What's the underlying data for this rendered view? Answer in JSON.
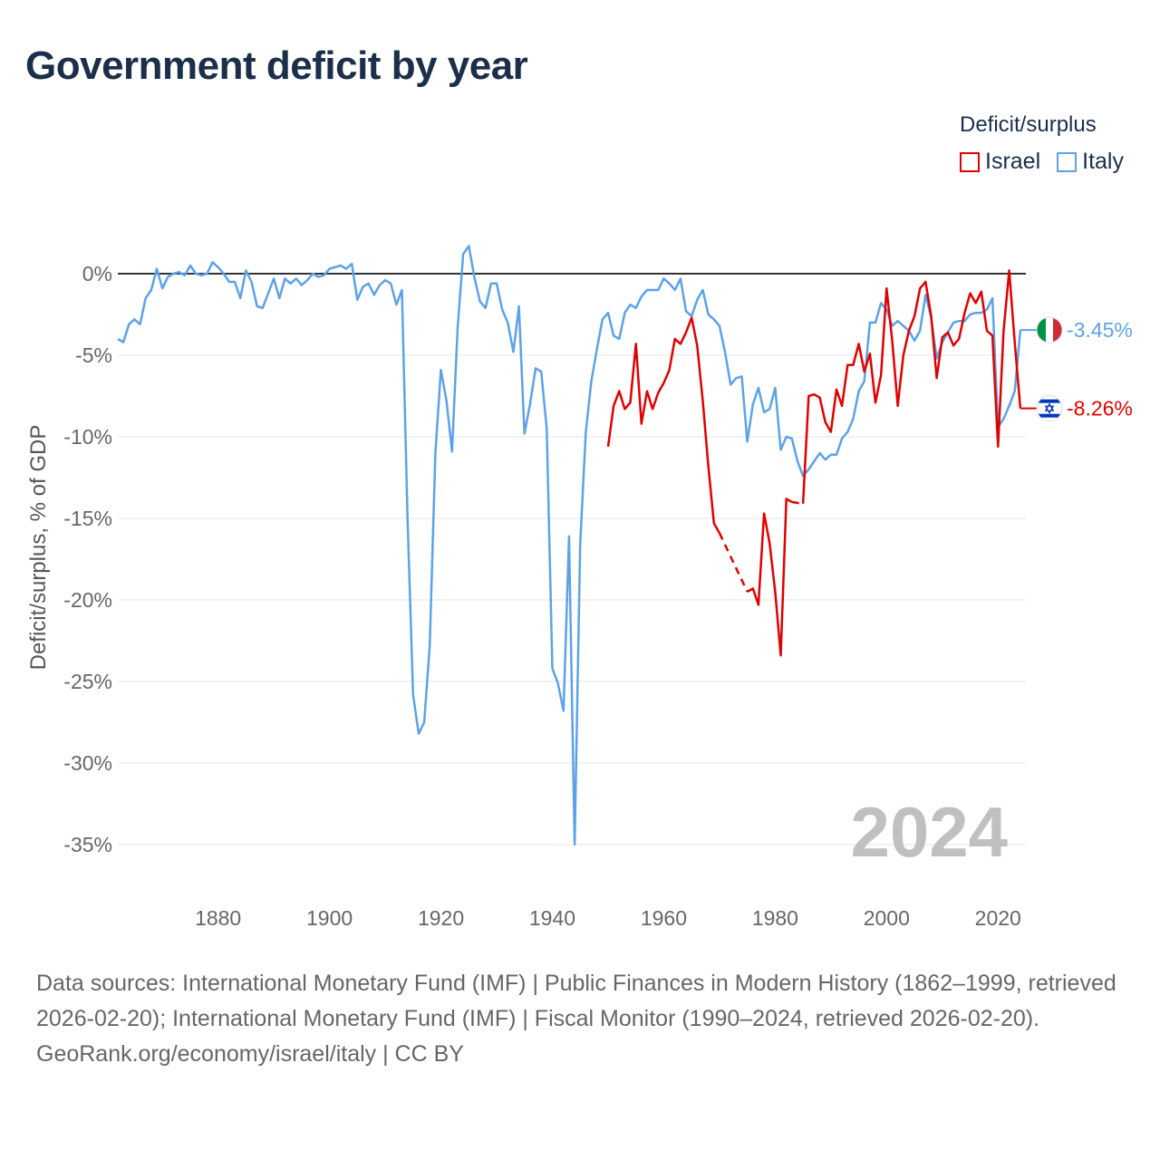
{
  "title": "Government deficit by year",
  "legend": {
    "title": "Deficit/surplus",
    "items": [
      {
        "name": "Israel",
        "color": "#e00000"
      },
      {
        "name": "Italy",
        "color": "#5da2e6"
      }
    ]
  },
  "watermark_year": "2024",
  "sources": "Data sources: International Monetary Fund (IMF) | Public Finances in Modern History (1862–1999, retrieved 2026-02-20); International Monetary Fund (IMF) | Fiscal Monitor (1990–2024, retrieved 2026-02-20).",
  "attribution": "GeoRank.org/economy/israel/italy | CC BY",
  "chart_data": {
    "type": "line",
    "title": "Government deficit by year",
    "xlabel": "",
    "ylabel": "Deficit/surplus, % of GDP",
    "xlim": [
      1862,
      2025
    ],
    "ylim": [
      -35,
      0
    ],
    "x_ticks": [
      1880,
      1900,
      1920,
      1940,
      1960,
      1980,
      2000,
      2020
    ],
    "y_ticks": [
      0,
      -5,
      -10,
      -15,
      -20,
      -25,
      -30,
      -35
    ],
    "y_tick_labels": [
      "0%",
      "-5%",
      "-10%",
      "-15%",
      "-20%",
      "-25%",
      "-30%",
      "-35%"
    ],
    "legend_position": "top-right",
    "series": [
      {
        "name": "Italy",
        "color": "#5da2e6",
        "end_label": "-3.45%",
        "flag": "italy",
        "points": [
          [
            1862,
            -4.0
          ],
          [
            1863,
            -4.2
          ],
          [
            1864,
            -3.1
          ],
          [
            1865,
            -2.8
          ],
          [
            1866,
            -3.1
          ],
          [
            1867,
            -1.5
          ],
          [
            1868,
            -1.0
          ],
          [
            1869,
            0.3
          ],
          [
            1870,
            -0.9
          ],
          [
            1871,
            -0.2
          ],
          [
            1872,
            0.0
          ],
          [
            1873,
            0.1
          ],
          [
            1874,
            -0.1
          ],
          [
            1875,
            0.5
          ],
          [
            1876,
            0.0
          ],
          [
            1877,
            -0.1
          ],
          [
            1878,
            0.0
          ],
          [
            1879,
            0.7
          ],
          [
            1880,
            0.4
          ],
          [
            1881,
            0.0
          ],
          [
            1882,
            -0.5
          ],
          [
            1883,
            -0.5
          ],
          [
            1884,
            -1.5
          ],
          [
            1885,
            0.2
          ],
          [
            1886,
            -0.5
          ],
          [
            1887,
            -2.0
          ],
          [
            1888,
            -2.1
          ],
          [
            1889,
            -1.2
          ],
          [
            1890,
            -0.3
          ],
          [
            1891,
            -1.5
          ],
          [
            1892,
            -0.3
          ],
          [
            1893,
            -0.6
          ],
          [
            1894,
            -0.3
          ],
          [
            1895,
            -0.7
          ],
          [
            1896,
            -0.4
          ],
          [
            1897,
            0.0
          ],
          [
            1898,
            -0.2
          ],
          [
            1899,
            -0.1
          ],
          [
            1900,
            0.3
          ],
          [
            1901,
            0.4
          ],
          [
            1902,
            0.5
          ],
          [
            1903,
            0.3
          ],
          [
            1904,
            0.6
          ],
          [
            1905,
            -1.6
          ],
          [
            1906,
            -0.8
          ],
          [
            1907,
            -0.6
          ],
          [
            1908,
            -1.3
          ],
          [
            1909,
            -0.7
          ],
          [
            1910,
            -0.4
          ],
          [
            1911,
            -0.6
          ],
          [
            1912,
            -1.9
          ],
          [
            1913,
            -1.0
          ],
          [
            1914,
            -15.0
          ],
          [
            1915,
            -25.8
          ],
          [
            1916,
            -28.2
          ],
          [
            1917,
            -27.5
          ],
          [
            1918,
            -22.8
          ],
          [
            1919,
            -11.0
          ],
          [
            1920,
            -5.9
          ],
          [
            1921,
            -7.8
          ],
          [
            1922,
            -10.9
          ],
          [
            1923,
            -3.3
          ],
          [
            1924,
            1.2
          ],
          [
            1925,
            1.7
          ],
          [
            1926,
            -0.2
          ],
          [
            1927,
            -1.7
          ],
          [
            1928,
            -2.1
          ],
          [
            1929,
            -0.6
          ],
          [
            1930,
            -0.6
          ],
          [
            1931,
            -2.2
          ],
          [
            1932,
            -3.0
          ],
          [
            1933,
            -4.8
          ],
          [
            1934,
            -2.0
          ],
          [
            1935,
            -9.8
          ],
          [
            1936,
            -8.0
          ],
          [
            1937,
            -5.8
          ],
          [
            1938,
            -6.0
          ],
          [
            1939,
            -9.5
          ],
          [
            1940,
            -24.2
          ],
          [
            1941,
            -25.1
          ],
          [
            1942,
            -26.8
          ],
          [
            1943,
            -16.1
          ],
          [
            1944,
            -35.0
          ],
          [
            1945,
            -16.6
          ],
          [
            1946,
            -9.7
          ],
          [
            1947,
            -6.6
          ],
          [
            1948,
            -4.6
          ],
          [
            1949,
            -2.8
          ],
          [
            1950,
            -2.4
          ],
          [
            1951,
            -3.8
          ],
          [
            1952,
            -4.0
          ],
          [
            1953,
            -2.4
          ],
          [
            1954,
            -1.9
          ],
          [
            1955,
            -2.1
          ],
          [
            1956,
            -1.4
          ],
          [
            1957,
            -1.0
          ],
          [
            1958,
            -1.0
          ],
          [
            1959,
            -1.0
          ],
          [
            1960,
            -0.3
          ],
          [
            1961,
            -0.6
          ],
          [
            1962,
            -1.0
          ],
          [
            1963,
            -0.3
          ],
          [
            1964,
            -2.3
          ],
          [
            1965,
            -2.6
          ],
          [
            1966,
            -1.6
          ],
          [
            1967,
            -1.0
          ],
          [
            1968,
            -2.5
          ],
          [
            1969,
            -2.8
          ],
          [
            1970,
            -3.2
          ],
          [
            1971,
            -4.8
          ],
          [
            1972,
            -6.8
          ],
          [
            1973,
            -6.4
          ],
          [
            1974,
            -6.3
          ],
          [
            1975,
            -10.3
          ],
          [
            1976,
            -8.0
          ],
          [
            1977,
            -7.0
          ],
          [
            1978,
            -8.5
          ],
          [
            1979,
            -8.3
          ],
          [
            1980,
            -7.0
          ],
          [
            1981,
            -10.8
          ],
          [
            1982,
            -10.0
          ],
          [
            1983,
            -10.1
          ],
          [
            1984,
            -11.5
          ],
          [
            1985,
            -12.4
          ],
          [
            1986,
            -12.0
          ],
          [
            1987,
            -11.5
          ],
          [
            1988,
            -11.0
          ],
          [
            1989,
            -11.4
          ],
          [
            1990,
            -11.1
          ],
          [
            1991,
            -11.1
          ],
          [
            1992,
            -10.1
          ],
          [
            1993,
            -9.7
          ],
          [
            1994,
            -8.9
          ],
          [
            1995,
            -7.2
          ],
          [
            1996,
            -6.6
          ],
          [
            1997,
            -3.0
          ],
          [
            1998,
            -3.0
          ],
          [
            1999,
            -1.8
          ],
          [
            2000,
            -2.2
          ],
          [
            2001,
            -3.2
          ],
          [
            2002,
            -2.9
          ],
          [
            2003,
            -3.2
          ],
          [
            2004,
            -3.5
          ],
          [
            2005,
            -4.1
          ],
          [
            2006,
            -3.5
          ],
          [
            2007,
            -1.3
          ],
          [
            2008,
            -2.7
          ],
          [
            2009,
            -5.2
          ],
          [
            2010,
            -4.2
          ],
          [
            2011,
            -3.6
          ],
          [
            2012,
            -3.0
          ],
          [
            2013,
            -2.9
          ],
          [
            2014,
            -2.9
          ],
          [
            2015,
            -2.5
          ],
          [
            2016,
            -2.4
          ],
          [
            2017,
            -2.4
          ],
          [
            2018,
            -2.2
          ],
          [
            2019,
            -1.5
          ],
          [
            2020,
            -9.4
          ],
          [
            2021,
            -8.9
          ],
          [
            2022,
            -8.1
          ],
          [
            2023,
            -7.2
          ],
          [
            2024,
            -3.45
          ]
        ]
      },
      {
        "name": "Israel",
        "color": "#e00000",
        "end_label": "-8.26%",
        "flag": "israel",
        "points": [
          [
            1950,
            -10.6
          ],
          [
            1951,
            -8.1
          ],
          [
            1952,
            -7.2
          ],
          [
            1953,
            -8.3
          ],
          [
            1954,
            -7.9
          ],
          [
            1955,
            -4.3
          ],
          [
            1956,
            -9.2
          ],
          [
            1957,
            -7.2
          ],
          [
            1958,
            -8.3
          ],
          [
            1959,
            -7.3
          ],
          [
            1960,
            -6.7
          ],
          [
            1961,
            -5.9
          ],
          [
            1962,
            -4.0
          ],
          [
            1963,
            -4.3
          ],
          [
            1964,
            -3.6
          ],
          [
            1965,
            -2.7
          ],
          [
            1966,
            -4.4
          ],
          [
            1967,
            -7.8
          ],
          [
            1968,
            -11.8
          ],
          [
            1969,
            -15.3
          ],
          [
            1970,
            -15.9
          ],
          [
            1971,
            null
          ],
          [
            1972,
            null
          ],
          [
            1973,
            null
          ],
          [
            1974,
            null
          ],
          [
            1975,
            -19.5
          ],
          [
            1976,
            -19.3
          ],
          [
            1977,
            -20.3
          ],
          [
            1978,
            -14.7
          ],
          [
            1979,
            -16.5
          ],
          [
            1980,
            -19.5
          ],
          [
            1981,
            -23.4
          ],
          [
            1982,
            -13.8
          ],
          [
            1983,
            -14.0
          ],
          [
            1984,
            null
          ],
          [
            1985,
            -14.1
          ],
          [
            1986,
            -7.5
          ],
          [
            1987,
            -7.4
          ],
          [
            1988,
            -7.6
          ],
          [
            1989,
            -9.1
          ],
          [
            1990,
            -9.7
          ],
          [
            1991,
            -7.1
          ],
          [
            1992,
            -8.1
          ],
          [
            1993,
            -5.6
          ],
          [
            1994,
            -5.6
          ],
          [
            1995,
            -4.3
          ],
          [
            1996,
            -6.0
          ],
          [
            1997,
            -4.9
          ],
          [
            1998,
            -7.9
          ],
          [
            1999,
            -6.2
          ],
          [
            2000,
            -0.9
          ],
          [
            2001,
            -4.1
          ],
          [
            2002,
            -8.1
          ],
          [
            2003,
            -5.0
          ],
          [
            2004,
            -3.5
          ],
          [
            2005,
            -2.6
          ],
          [
            2006,
            -0.9
          ],
          [
            2007,
            -0.5
          ],
          [
            2008,
            -2.6
          ],
          [
            2009,
            -6.4
          ],
          [
            2010,
            -3.9
          ],
          [
            2011,
            -3.6
          ],
          [
            2012,
            -4.4
          ],
          [
            2013,
            -4.0
          ],
          [
            2014,
            -2.4
          ],
          [
            2015,
            -1.2
          ],
          [
            2016,
            -1.8
          ],
          [
            2017,
            -1.1
          ],
          [
            2018,
            -3.5
          ],
          [
            2019,
            -3.8
          ],
          [
            2020,
            -10.6
          ],
          [
            2021,
            -3.5
          ],
          [
            2022,
            0.2
          ],
          [
            2023,
            -4.2
          ],
          [
            2024,
            -8.26
          ]
        ],
        "dashed_segments": [
          [
            1970,
            1975
          ],
          [
            1983,
            1985
          ]
        ]
      }
    ]
  }
}
